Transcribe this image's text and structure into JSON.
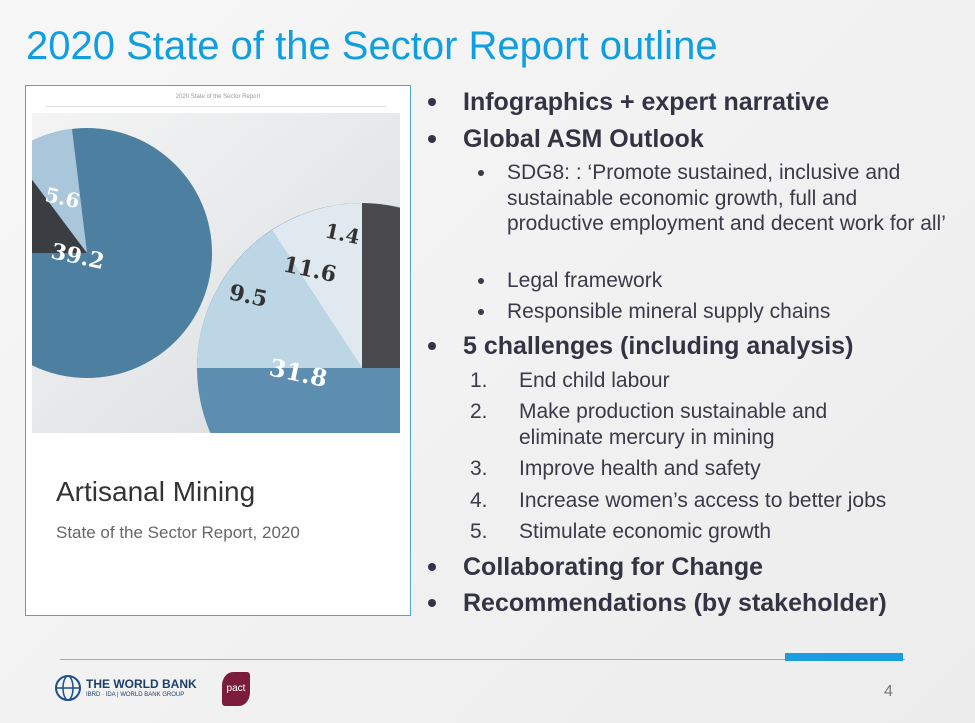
{
  "title": "2020 State of the Sector Report outline",
  "cover": {
    "header": "2020 State of the Sector Report",
    "figure_labels": [
      "5.6",
      "39.2",
      "1.4",
      "11.6",
      "9.5",
      "31.8"
    ],
    "title": "Artisanal Mining",
    "subtitle": "State of the Sector Report, 2020"
  },
  "outline": [
    {
      "text": "Infographics + expert narrative"
    },
    {
      "text": "Global ASM Outlook",
      "items": [
        "SDG8: : ‘Promote sustained, inclusive and sustainable economic growth, full and productive employment and decent work for all’",
        "Legal framework",
        "Responsible mineral supply chains"
      ]
    },
    {
      "text": "5 challenges (including analysis)",
      "items": [
        {
          "number": "1.",
          "text": "End child labour"
        },
        {
          "number": "2.",
          "text": "Make production sustainable and eliminate mercury in mining"
        },
        {
          "number": "3.",
          "text": "Improve health and safety"
        },
        {
          "number": "4.",
          "text": "Increase women’s access to better jobs"
        },
        {
          "number": "5.",
          "text": "Stimulate economic growth"
        }
      ]
    },
    {
      "text": "Collaborating for Change"
    },
    {
      "text": "Recommendations (by stakeholder)"
    }
  ],
  "footer": {
    "logo_name": "THE WORLD BANK",
    "logo_sub": "IBRD · IDA | WORLD BANK GROUP",
    "partner": "pact",
    "page_number": 4
  }
}
